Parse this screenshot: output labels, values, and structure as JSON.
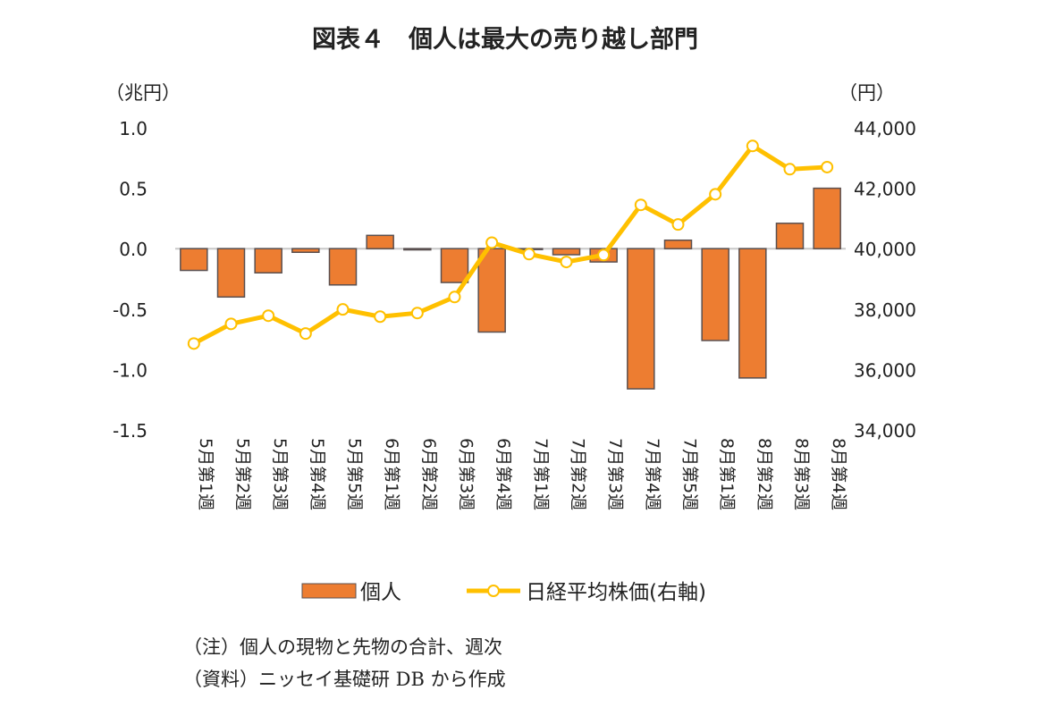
{
  "chart_data": {
    "type": "bar+line",
    "title": "図表４　個人は最大の売り越し部門",
    "left_unit": "（兆円）",
    "right_unit": "（円）",
    "categories": [
      "5月第1週",
      "5月第2週",
      "5月第3週",
      "5月第4週",
      "5月第5週",
      "6月第1週",
      "6月第2週",
      "6月第3週",
      "6月第4週",
      "7月第1週",
      "7月第2週",
      "7月第3週",
      "7月第4週",
      "7月第5週",
      "8月第1週",
      "8月第2週",
      "8月第3週",
      "8月第4週"
    ],
    "series": [
      {
        "name": "個人",
        "type": "bar",
        "axis": "left",
        "color": "#ED7D31",
        "values": [
          -0.18,
          -0.4,
          -0.2,
          -0.03,
          -0.3,
          0.11,
          -0.01,
          -0.28,
          -0.69,
          0.0,
          -0.05,
          -0.11,
          -1.16,
          0.07,
          -0.76,
          -1.07,
          0.21,
          0.5
        ]
      },
      {
        "name": "日経平均株価(右軸)",
        "type": "line",
        "axis": "right",
        "color": "#FFC000",
        "values": [
          36860,
          37510,
          37780,
          37190,
          37990,
          37750,
          37870,
          38400,
          40200,
          39820,
          39560,
          39790,
          41450,
          40800,
          41800,
          43400,
          42630,
          42700
        ]
      }
    ],
    "left_axis": {
      "range": [
        -1.5,
        1.0
      ],
      "ticks": [
        "1.0",
        "0.5",
        "0.0",
        "-0.5",
        "-1.0",
        "-1.5"
      ]
    },
    "right_axis": {
      "range": [
        34000,
        44000
      ],
      "ticks": [
        "44,000",
        "42,000",
        "40,000",
        "38,000",
        "36,000",
        "34,000"
      ]
    },
    "legend_position": "bottom",
    "grid": false
  },
  "notes": [
    "（注）個人の現物と先物の合計、週次",
    "（資料）ニッセイ基礎研 DB から作成"
  ]
}
